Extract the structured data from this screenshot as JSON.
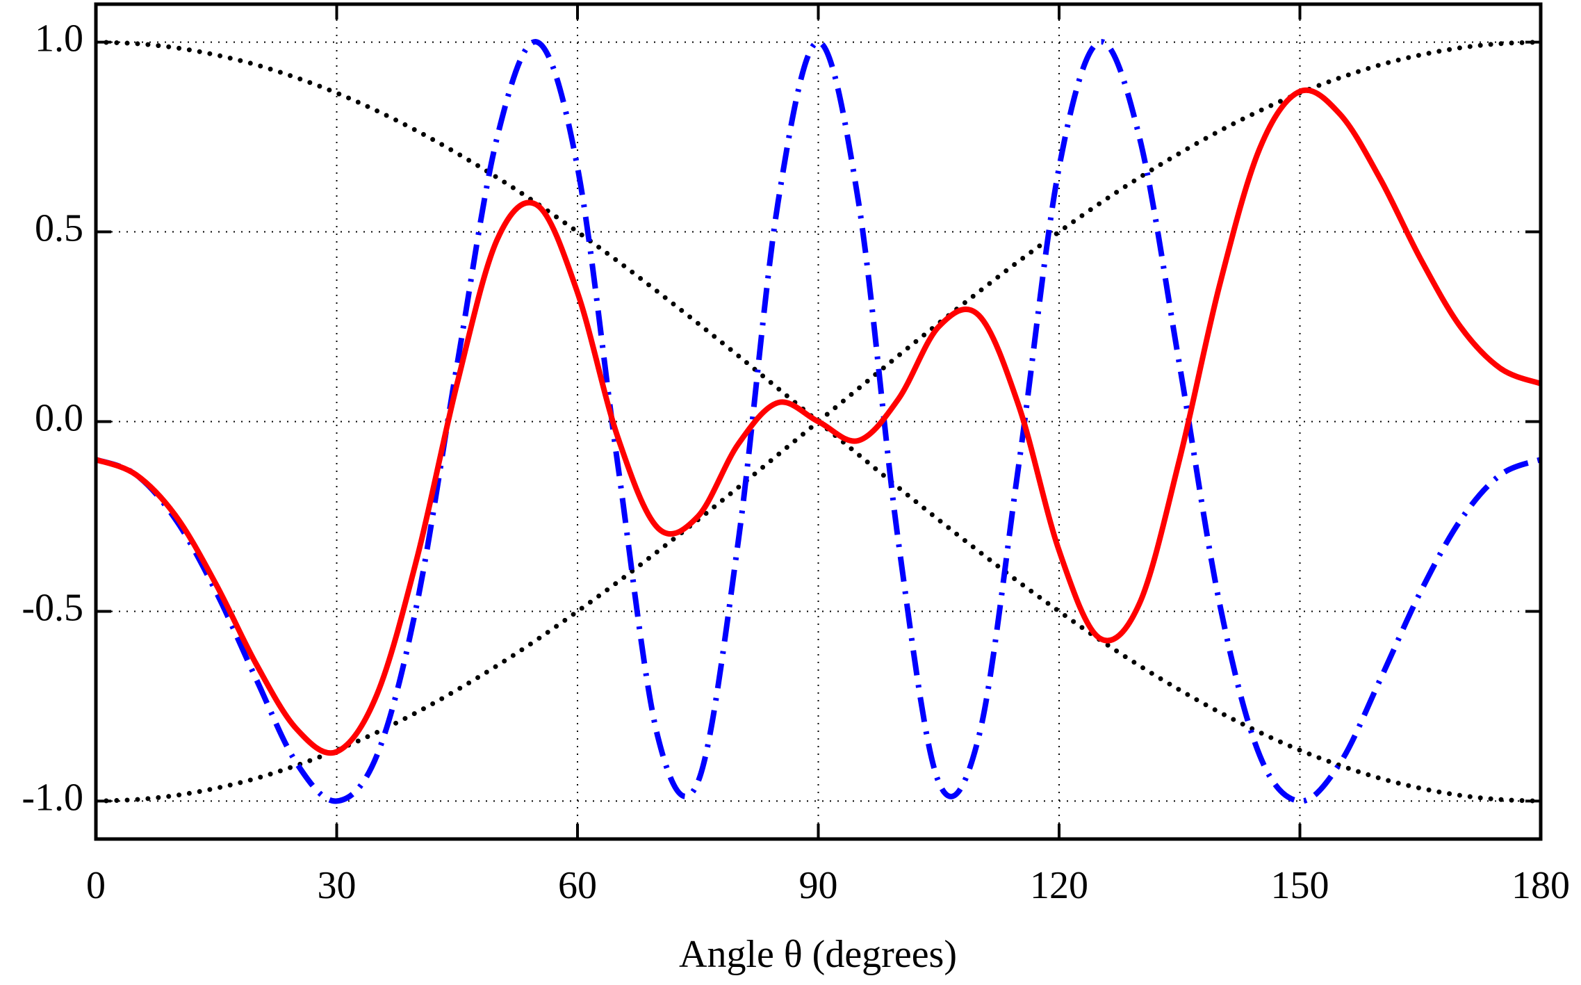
{
  "chart_data": {
    "type": "line",
    "x_label": "Angle θ (degrees)",
    "x": [
      0,
      5,
      10,
      15,
      20,
      25,
      30,
      35,
      40,
      45,
      50,
      55,
      60,
      65,
      70,
      75,
      80,
      85,
      90,
      95,
      100,
      105,
      110,
      115,
      120,
      125,
      130,
      135,
      140,
      145,
      150,
      155,
      160,
      165,
      170,
      175,
      180
    ],
    "xlim": [
      0,
      180
    ],
    "xticks": [
      0,
      30,
      60,
      90,
      120,
      150,
      180
    ],
    "ylim": [
      -1.1,
      1.1
    ],
    "yticks": [
      {
        "value": -1,
        "label": "-1.0"
      },
      {
        "value": -0.5,
        "label": "-0.5"
      },
      {
        "value": 0,
        "label": "0.0"
      },
      {
        "value": 0.5,
        "label": "0.5"
      },
      {
        "value": 1,
        "label": "1.0"
      }
    ],
    "grid": true,
    "series": [
      {
        "color": "#000000",
        "style": "dotted",
        "values": [
          1,
          0.996,
          0.985,
          0.966,
          0.94,
          0.906,
          0.866,
          0.819,
          0.766,
          0.707,
          0.643,
          0.574,
          0.5,
          0.423,
          0.342,
          0.259,
          0.174,
          0.087,
          0,
          -0.087,
          -0.174,
          -0.259,
          -0.342,
          -0.423,
          -0.5,
          -0.574,
          -0.643,
          -0.707,
          -0.766,
          -0.819,
          -0.866,
          -0.906,
          -0.94,
          -0.966,
          -0.985,
          -0.996,
          -1
        ]
      },
      {
        "color": "#000000",
        "style": "dotted",
        "values": [
          -1,
          -0.996,
          -0.985,
          -0.966,
          -0.94,
          -0.906,
          -0.866,
          -0.819,
          -0.766,
          -0.707,
          -0.643,
          -0.574,
          -0.5,
          -0.423,
          -0.342,
          -0.259,
          -0.174,
          -0.087,
          0,
          0.087,
          0.174,
          0.259,
          0.342,
          0.423,
          0.5,
          0.574,
          0.643,
          0.707,
          0.766,
          0.819,
          0.866,
          0.906,
          0.94,
          0.966,
          0.985,
          0.996,
          1
        ]
      },
      {
        "color": "#0000ff",
        "style": "dashdot",
        "values": [
          -0.1,
          -0.14,
          -0.26,
          -0.45,
          -0.68,
          -0.9,
          -1,
          -0.88,
          -0.48,
          0.15,
          0.75,
          1,
          0.67,
          -0.11,
          -0.83,
          -0.95,
          -0.32,
          0.58,
          1,
          0.58,
          -0.32,
          -0.95,
          -0.83,
          -0.11,
          0.67,
          1,
          0.75,
          0.15,
          -0.48,
          -0.88,
          -1,
          -0.9,
          -0.68,
          -0.45,
          -0.26,
          -0.14,
          -0.1
        ]
      },
      {
        "color": "#ff0000",
        "style": "solid",
        "values": [
          -0.1,
          -0.14,
          -0.25,
          -0.43,
          -0.64,
          -0.81,
          -0.87,
          -0.72,
          -0.36,
          0.1,
          0.48,
          0.57,
          0.34,
          -0.04,
          -0.28,
          -0.25,
          -0.06,
          0.05,
          0,
          -0.05,
          0.06,
          0.25,
          0.28,
          0.04,
          -0.34,
          -0.57,
          -0.48,
          -0.1,
          0.36,
          0.72,
          0.87,
          0.81,
          0.64,
          0.43,
          0.25,
          0.14,
          0.1
        ]
      }
    ]
  }
}
